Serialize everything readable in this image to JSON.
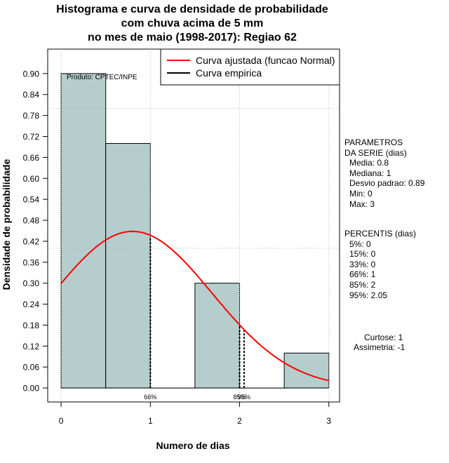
{
  "chart_data": {
    "type": "bar",
    "title_lines": [
      "Histograma e curva de densidade de probabilidade",
      "com chuva acima de 5 mm",
      "no mes de maio (1998-2017): Regiao 62"
    ],
    "xlabel": "Numero de dias",
    "ylabel": "Densidade de probabilidade",
    "xlim": [
      -0.15,
      3.12
    ],
    "ylim": [
      -0.04,
      0.97
    ],
    "x_ticks": [
      "0",
      "1",
      "2",
      "3"
    ],
    "y_ticks": [
      "0.00",
      "0.06",
      "0.12",
      "0.18",
      "0.24",
      "0.30",
      "0.36",
      "0.42",
      "0.48",
      "0.54",
      "0.60",
      "0.66",
      "0.72",
      "0.78",
      "0.84",
      "0.90"
    ],
    "bars": [
      {
        "x0": 0.0,
        "x1": 0.5,
        "value": 0.9
      },
      {
        "x0": 0.5,
        "x1": 1.0,
        "value": 0.7
      },
      {
        "x0": 1.0,
        "x1": 1.5,
        "value": 0.0
      },
      {
        "x0": 1.5,
        "x1": 2.0,
        "value": 0.3
      },
      {
        "x0": 2.0,
        "x1": 2.5,
        "value": 0.0
      },
      {
        "x0": 2.5,
        "x1": 3.0,
        "value": 0.1
      }
    ],
    "bar_color": "#b5cdcd",
    "curve": {
      "name": "Curva ajustada (funcao Normal)",
      "type": "normal",
      "mean": 0.8,
      "sd": 0.89,
      "x_from": 0.0,
      "x_to": 3.0,
      "color": "#ff0000"
    },
    "empirical_curve": {
      "name": "Curva empirica",
      "color": "#000000"
    },
    "grid_x": [
      0,
      1,
      2,
      3
    ],
    "grid_y": [
      0.4,
      0.8
    ],
    "percentile_markers": [
      {
        "x": 1.0,
        "top": 0.43,
        "label": "66%"
      },
      {
        "x": 2.0,
        "top": 0.18,
        "label": "85%"
      },
      {
        "x": 2.05,
        "top": 0.165,
        "label": "95%"
      }
    ],
    "credit": "Produto: CPTEC/INPE",
    "legend_position": "top-right"
  },
  "side_panel": {
    "params_title_1": "PARAMETROS",
    "params_title_2": "DA SERIE (dias)",
    "media": "Media: 0.8",
    "mediana": "Mediana: 1",
    "desvio": "Desvio padrao: 0.89",
    "min": "Min: 0",
    "max": "Max: 3",
    "percentis_title": "PERCENTIS (dias)",
    "p5": "5%: 0",
    "p15": "15%: 0",
    "p33": "33%: 0",
    "p66": "66%: 1",
    "p85": "85%: 2",
    "p95": "95%: 2.05",
    "curtose": "Curtose: 1",
    "assimetria": "Assimetria: -1"
  }
}
